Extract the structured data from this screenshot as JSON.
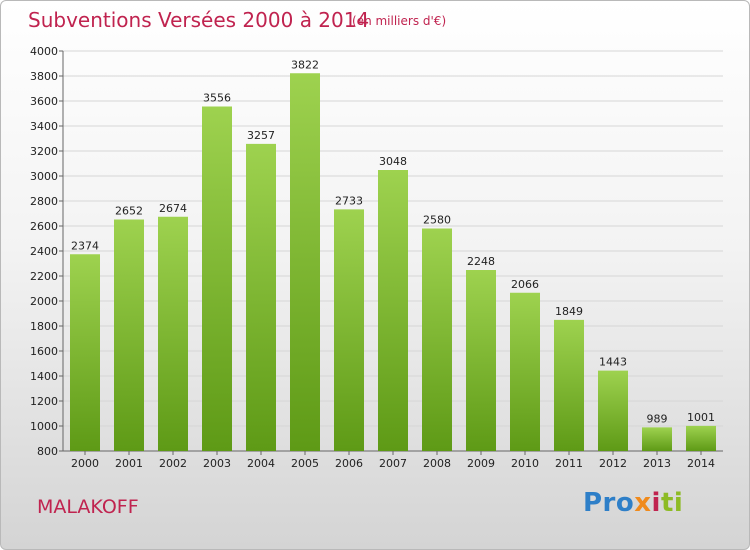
{
  "header": {
    "title": "Subventions Versées 2000 à 2014",
    "subtitle": "(en milliers d'€)"
  },
  "footer": {
    "city": "MALAKOFF",
    "logo_parts": [
      "Pro",
      "x",
      "i",
      "ti"
    ]
  },
  "colors": {
    "bar_top": "#9ed24f",
    "bar_bottom": "#5e9a16",
    "title": "#c0234f"
  },
  "chart_data": {
    "type": "bar",
    "title": "Subventions Versées 2000 à 2014",
    "subtitle": "(en milliers d'€)",
    "categories": [
      "2000",
      "2001",
      "2002",
      "2003",
      "2004",
      "2005",
      "2006",
      "2007",
      "2008",
      "2009",
      "2010",
      "2011",
      "2012",
      "2013",
      "2014"
    ],
    "values": [
      2374,
      2652,
      2674,
      3556,
      3257,
      3822,
      2733,
      3048,
      2580,
      2248,
      2066,
      1849,
      1443,
      989,
      1001
    ],
    "ylim": [
      800,
      4000
    ],
    "yticks": [
      800,
      1000,
      1200,
      1400,
      1600,
      1800,
      2000,
      2200,
      2400,
      2600,
      2800,
      3000,
      3200,
      3400,
      3600,
      3800,
      4000
    ],
    "grid": true,
    "data_labels": true
  }
}
